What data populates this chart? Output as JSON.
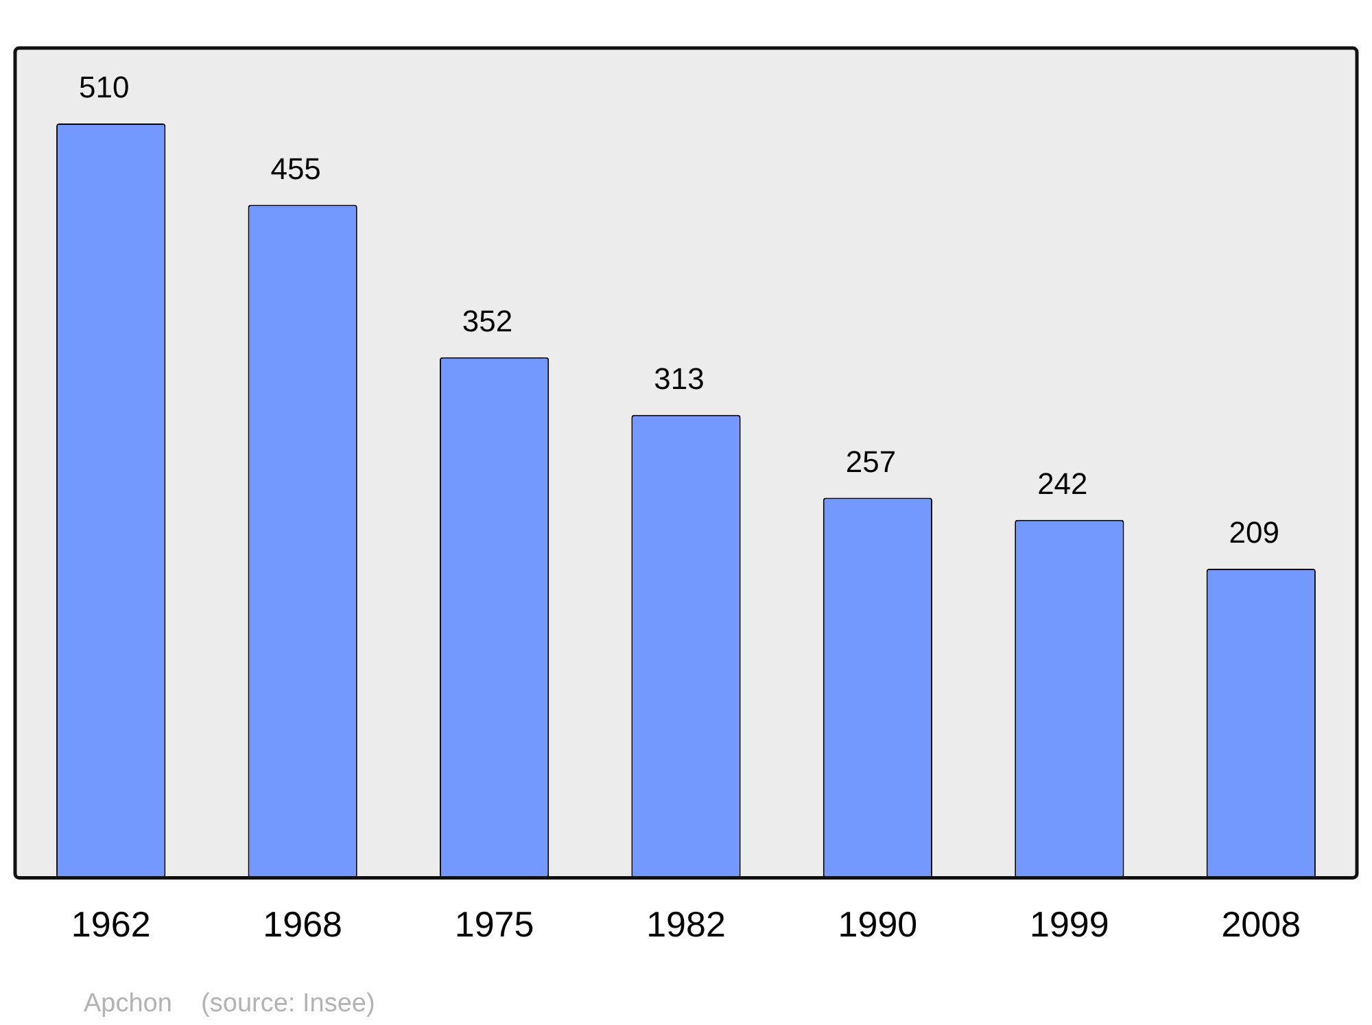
{
  "chart_data": {
    "type": "bar",
    "categories": [
      "1962",
      "1968",
      "1975",
      "1982",
      "1990",
      "1999",
      "2008"
    ],
    "values": [
      510,
      455,
      352,
      313,
      257,
      242,
      209
    ],
    "color": "#7399ff",
    "ylim": [
      0,
      561
    ],
    "data_labels": true,
    "grid": false,
    "legend": false,
    "annotations": [
      "Apchon    (source: Insee)"
    ]
  }
}
